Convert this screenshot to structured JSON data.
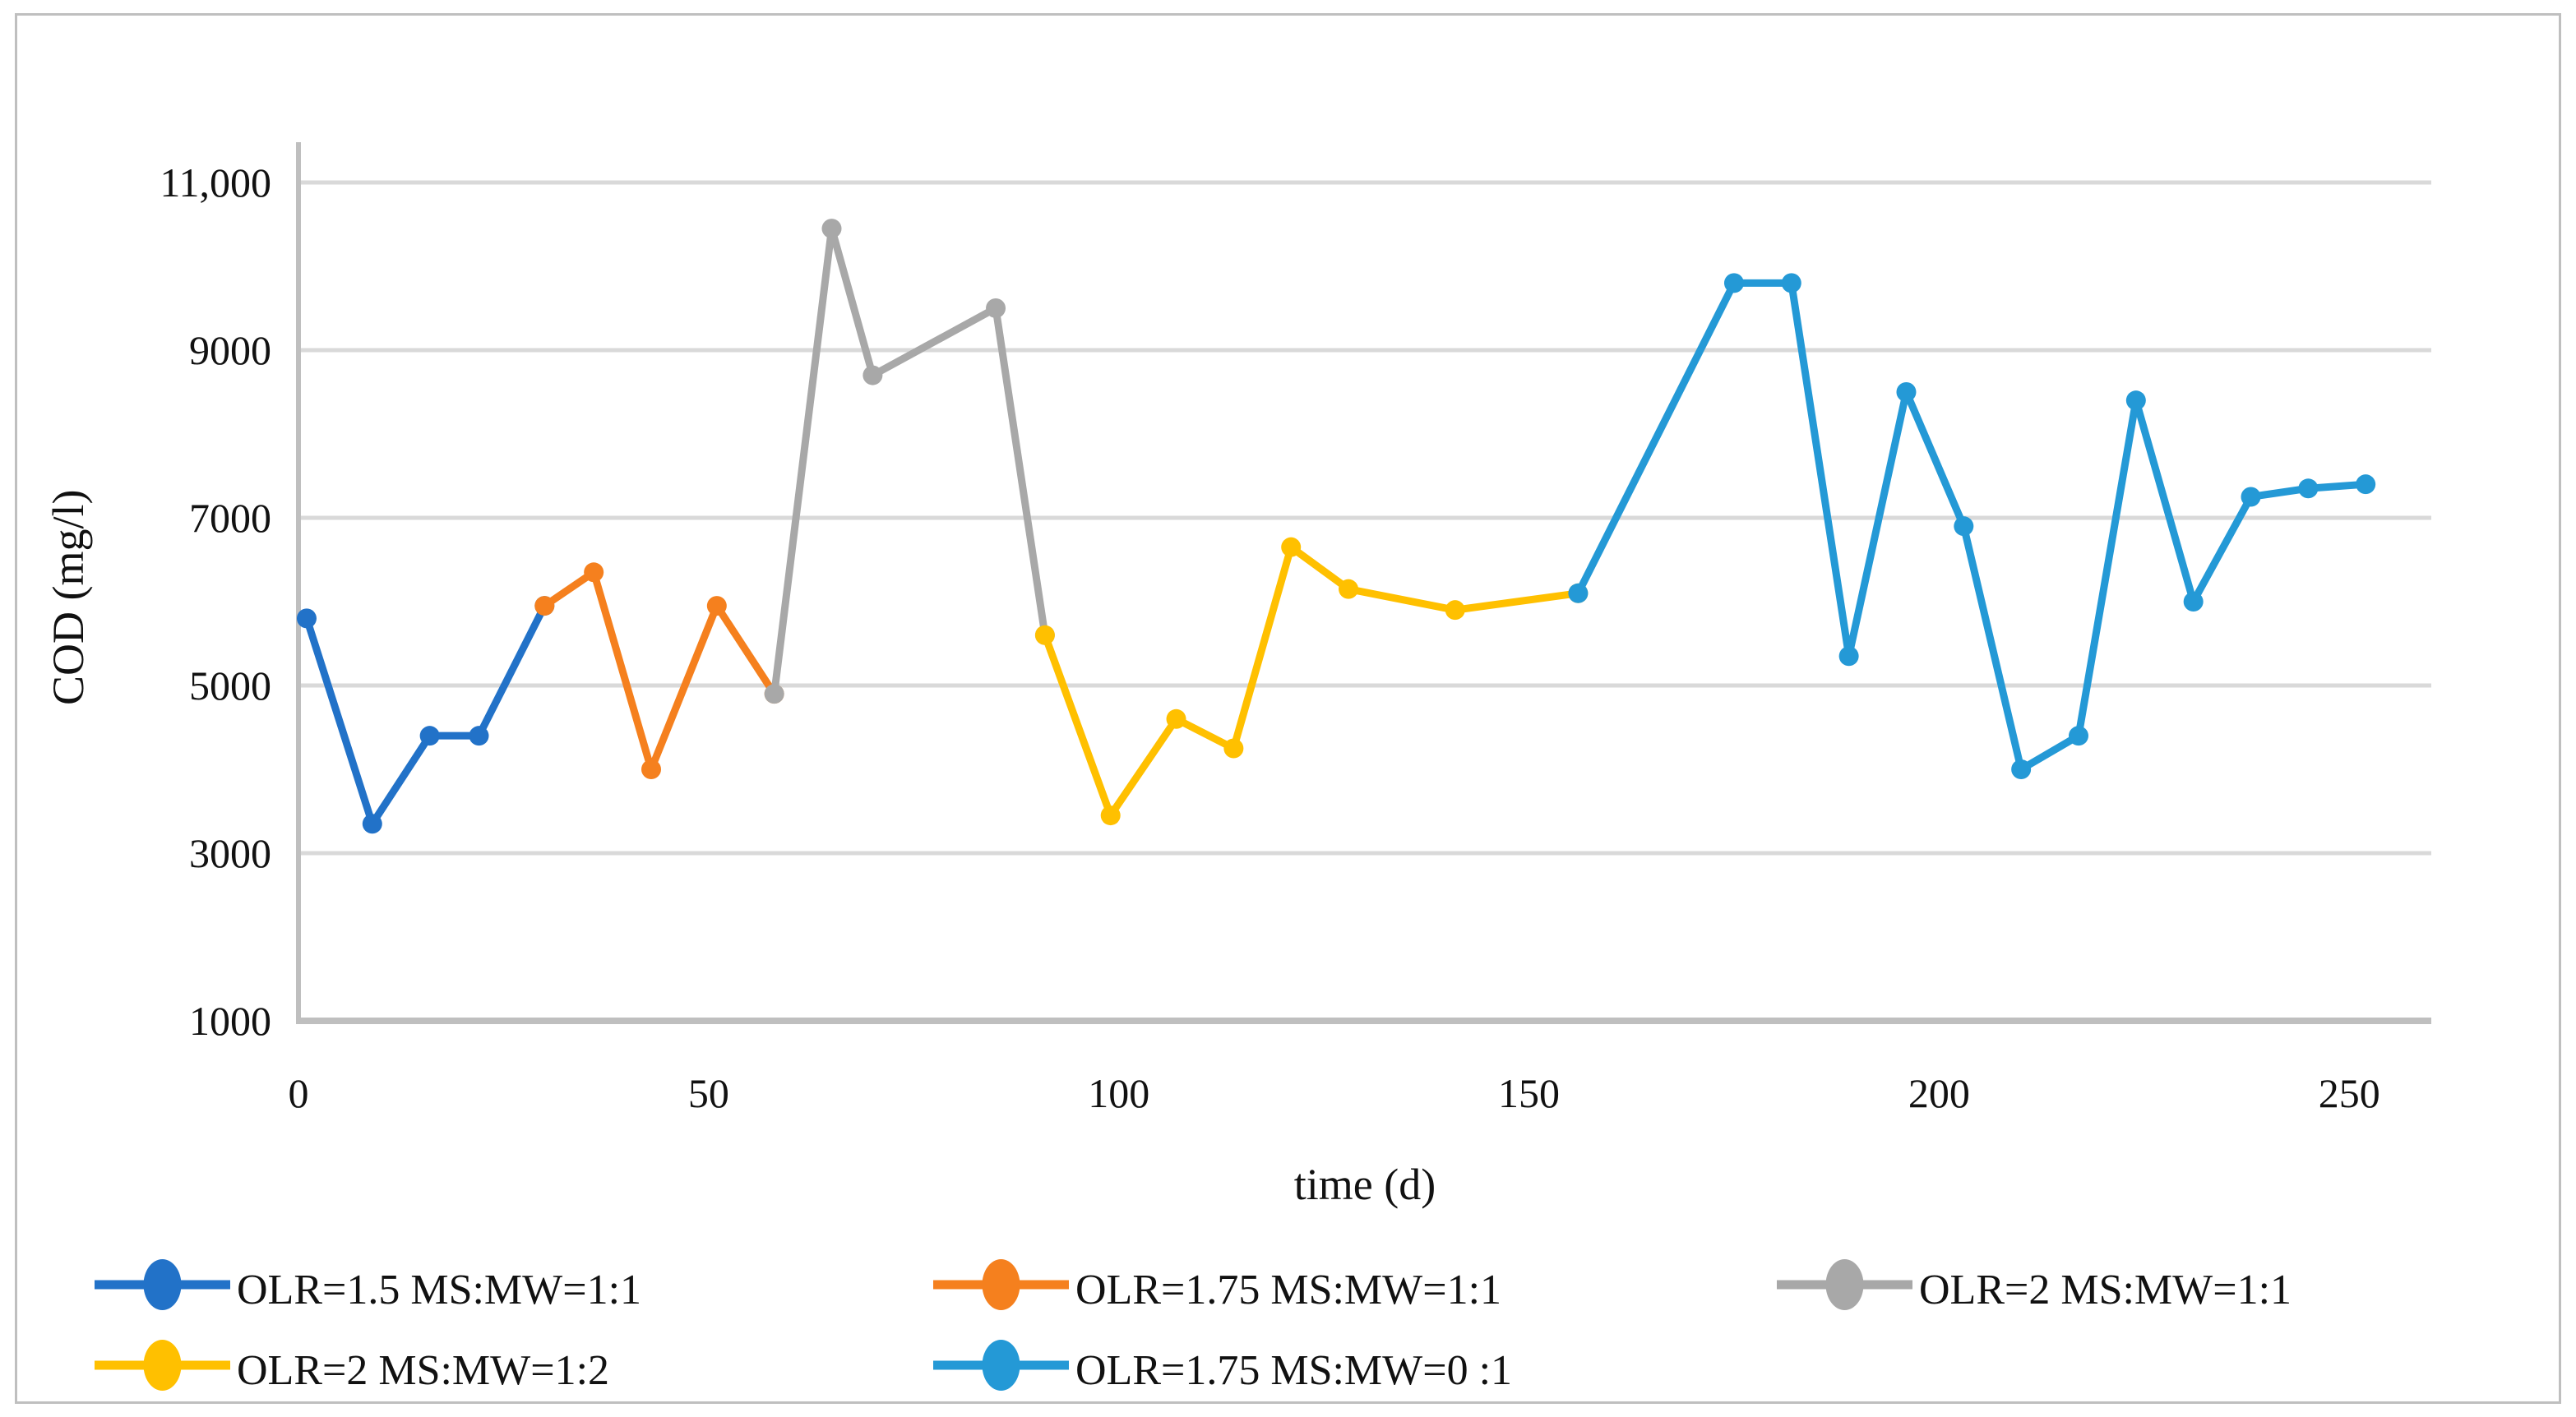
{
  "figure": {
    "background": "#ffffff",
    "border_color": "#bfbfbf"
  },
  "chart_data": {
    "type": "line",
    "title": "",
    "xlabel": "time (d)",
    "ylabel": "COD (mg/l)",
    "xlim": [
      0,
      260
    ],
    "ylim": [
      1000,
      11480
    ],
    "x_ticks": [
      0,
      50,
      100,
      150,
      200,
      250
    ],
    "y_ticks": [
      1000,
      3000,
      5000,
      7000,
      9000,
      11000
    ],
    "y_tick_labels": [
      "1000",
      "3000",
      "5000",
      "7000",
      "9000",
      "11,000"
    ],
    "grid": "horizontal gridlines at each y tick above axis",
    "gridline_color": "#d9d9d9",
    "axis_color": "#bfbfbf",
    "legend_position": "bottom, 2 rows",
    "series": [
      {
        "name": "OLR=1.5 MS:MW=1:1",
        "color": "#2272c8",
        "points": [
          [
            1,
            5800
          ],
          [
            9,
            3350
          ],
          [
            16,
            4400
          ],
          [
            22,
            4400
          ],
          [
            30,
            5950
          ]
        ]
      },
      {
        "name": "OLR=1.75 MS:MW=1:1",
        "color": "#f5801e",
        "points": [
          [
            30,
            5950
          ],
          [
            36,
            6350
          ],
          [
            43,
            4000
          ],
          [
            51,
            5950
          ],
          [
            58,
            4900
          ]
        ]
      },
      {
        "name": "OLR=2 MS:MW=1:1",
        "color": "#a8a8a8",
        "points": [
          [
            58,
            4900
          ],
          [
            65,
            10450
          ],
          [
            70,
            8700
          ],
          [
            85,
            9500
          ],
          [
            91,
            5600
          ]
        ]
      },
      {
        "name": "OLR=2 MS:MW=1:2",
        "color": "#ffc000",
        "points": [
          [
            91,
            5600
          ],
          [
            99,
            3450
          ],
          [
            107,
            4600
          ],
          [
            114,
            4250
          ],
          [
            121,
            6650
          ],
          [
            128,
            6150
          ],
          [
            141,
            5900
          ],
          [
            156,
            6100
          ]
        ]
      },
      {
        "name": "OLR=1.75 MS:MW=0 :1",
        "color": "#2499d6",
        "points": [
          [
            156,
            6100
          ],
          [
            175,
            9800
          ],
          [
            182,
            9800
          ],
          [
            189,
            5350
          ],
          [
            196,
            8500
          ],
          [
            203,
            6900
          ],
          [
            210,
            4000
          ],
          [
            217,
            4400
          ],
          [
            224,
            8400
          ],
          [
            231,
            6000
          ],
          [
            238,
            7250
          ],
          [
            245,
            7350
          ],
          [
            252,
            7400
          ]
        ]
      }
    ]
  }
}
